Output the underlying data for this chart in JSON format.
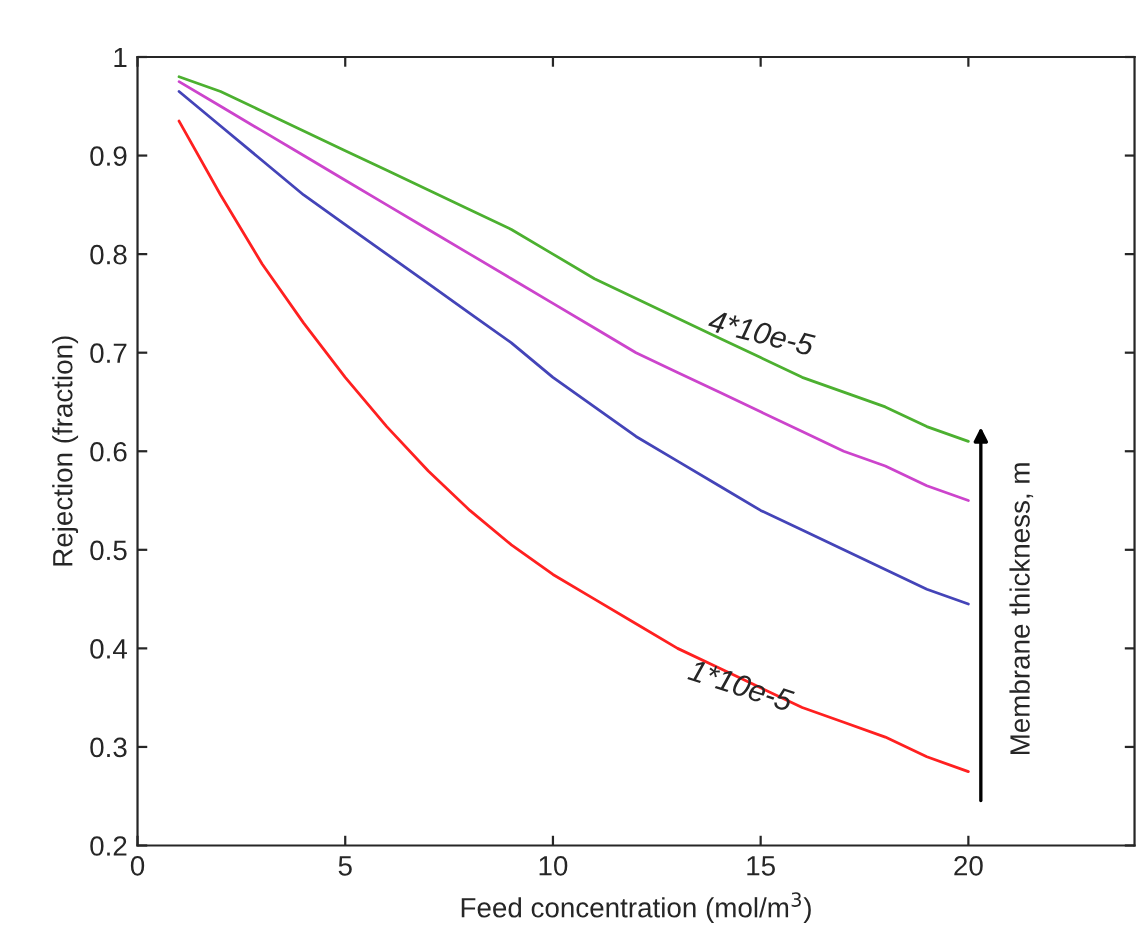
{
  "chart_data": {
    "type": "line",
    "xlabel": "Feed concentration (mol/m$^{3}$)",
    "ylabel": "Rejection (fraction)",
    "x": [
      1,
      2,
      3,
      4,
      5,
      6,
      7,
      8,
      9,
      10,
      11,
      12,
      13,
      14,
      15,
      16,
      17,
      18,
      19,
      20
    ],
    "series": [
      {
        "color": "#ff2020",
        "values": [
          0.935,
          0.86,
          0.79,
          0.73,
          0.675,
          0.625,
          0.58,
          0.54,
          0.505,
          0.475,
          0.45,
          0.425,
          0.4,
          0.38,
          0.36,
          0.34,
          0.325,
          0.31,
          0.29,
          0.275
        ]
      },
      {
        "color": "#4444b8",
        "values": [
          0.965,
          0.93,
          0.895,
          0.86,
          0.83,
          0.8,
          0.77,
          0.74,
          0.71,
          0.675,
          0.645,
          0.615,
          0.59,
          0.565,
          0.54,
          0.52,
          0.5,
          0.48,
          0.46,
          0.445
        ]
      },
      {
        "color": "#cc44cc",
        "values": [
          0.975,
          0.95,
          0.925,
          0.9,
          0.875,
          0.85,
          0.825,
          0.8,
          0.775,
          0.75,
          0.725,
          0.7,
          0.68,
          0.66,
          0.64,
          0.62,
          0.6,
          0.585,
          0.565,
          0.55
        ]
      },
      {
        "color": "#4cb030",
        "values": [
          0.98,
          0.965,
          0.945,
          0.925,
          0.905,
          0.885,
          0.865,
          0.845,
          0.825,
          0.8,
          0.775,
          0.755,
          0.735,
          0.715,
          0.695,
          0.675,
          0.66,
          0.645,
          0.625,
          0.61
        ]
      }
    ],
    "annotations": [
      {
        "text": "4*10e-5",
        "x": 15,
        "y": 0.695
      },
      {
        "text": "1*10e-5",
        "x": 14.5,
        "y": 0.36
      },
      "Membrane thickness, m"
    ],
    "xlim": [
      0,
      24
    ],
    "xticks": [
      0,
      5,
      10,
      15,
      20
    ],
    "ylim": [
      0.2,
      1
    ],
    "yticks": [
      0.2,
      0.3,
      0.4,
      0.5,
      0.6,
      0.7,
      0.8,
      0.9,
      1
    ],
    "grid": false,
    "legend": false,
    "marker": "none",
    "line_style": "solid"
  }
}
